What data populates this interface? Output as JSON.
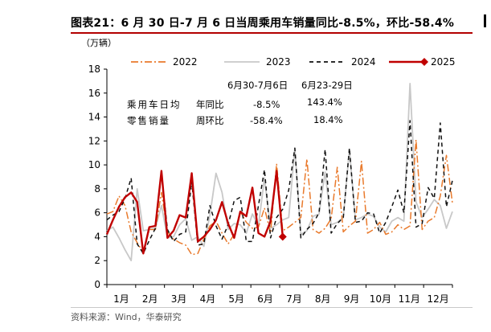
{
  "header": {
    "title": "图表21：6 月 30 日-7 月 6 日当周乘用车销量同比-8.5%，环比-58.4%"
  },
  "footer": {
    "source": "资料来源：Wind，华泰研究"
  },
  "chart_data": {
    "type": "line",
    "unit_label": "（万辆）",
    "ylim": [
      0,
      18
    ],
    "y_ticks": [
      "0",
      "2",
      "4",
      "6",
      "8",
      "10",
      "12",
      "14",
      "16",
      "18"
    ],
    "x_ticks": [
      "1月",
      "2月",
      "3月",
      "4月",
      "5月",
      "6月",
      "7月",
      "8月",
      "9月",
      "10月",
      "11月",
      "12月"
    ],
    "grid": false,
    "legend_position": "top",
    "x_unit": "week of year",
    "series": [
      {
        "name": "2022",
        "color": "#e97a2c",
        "style": "dashdot",
        "values": [
          5.9,
          6.1,
          7.4,
          6.6,
          4.4,
          3.5,
          2.7,
          4.6,
          4.6,
          7.7,
          4.4,
          3.8,
          3.5,
          3.3,
          2.5,
          2.6,
          3.8,
          4.9,
          5.3,
          4.3,
          3.4,
          4.2,
          6.1,
          5.2,
          4.7,
          4.8,
          6.4,
          4.3,
          10.1,
          4.5,
          4.8,
          5.2,
          5.6,
          10.5,
          4.6,
          4.3,
          4.7,
          5.5,
          9.8,
          4.4,
          4.9,
          5.3,
          10.3,
          4.3,
          4.6,
          5.2,
          4.2,
          4.4,
          5.0,
          4.6,
          4.9,
          12.1,
          4.6,
          5.3,
          5.6,
          7.4,
          10.8,
          6.8
        ]
      },
      {
        "name": "2023",
        "color": "#c8c8c8",
        "style": "solid",
        "values": [
          4.5,
          4.8,
          3.9,
          2.9,
          2.0,
          8.0,
          4.5,
          4.6,
          4.7,
          6.6,
          3.9,
          4.0,
          5.0,
          5.5,
          3.7,
          4.0,
          3.2,
          5.8,
          9.3,
          7.7,
          4.6,
          5.1,
          5.0,
          4.3,
          5.9,
          4.9,
          8.9,
          4.7,
          5.0,
          5.4,
          5.6,
          11.4,
          4.2,
          4.5,
          5.7,
          5.9,
          9.4,
          5.0,
          5.2,
          5.6,
          11.3,
          5.4,
          5.6,
          5.9,
          5.7,
          4.8,
          4.4,
          5.3,
          5.6,
          5.3,
          16.8,
          6.9,
          5.6,
          6.3,
          7.1,
          6.6,
          4.7,
          6.1
        ]
      },
      {
        "name": "2024",
        "color": "#111111",
        "style": "dashed",
        "values": [
          5.4,
          5.8,
          6.1,
          7.2,
          8.9,
          3.4,
          2.6,
          3.7,
          4.7,
          9.3,
          4.6,
          3.6,
          4.2,
          4.4,
          8.6,
          3.3,
          3.4,
          6.6,
          4.9,
          3.8,
          5.0,
          7.0,
          7.3,
          3.6,
          3.6,
          6.6,
          9.6,
          3.9,
          5.6,
          6.3,
          7.9,
          11.4,
          3.9,
          4.6,
          5.1,
          6.0,
          11.3,
          4.3,
          5.1,
          5.6,
          11.4,
          5.2,
          5.3,
          6.0,
          5.9,
          4.3,
          5.2,
          6.5,
          7.9,
          6.0,
          13.7,
          4.8,
          5.1,
          8.1,
          7.2,
          13.5,
          6.5,
          8.7
        ]
      },
      {
        "name": "2025",
        "color": "#c00000",
        "style": "solid",
        "values": [
          4.2,
          5.4,
          6.5,
          7.3,
          7.7,
          6.9,
          2.6,
          4.8,
          4.9,
          9.5,
          3.9,
          4.5,
          5.8,
          5.6,
          9.3,
          3.6,
          4.0,
          4.6,
          5.4,
          6.9,
          5.1,
          3.9,
          6.1,
          5.7,
          8.1,
          4.3,
          4.0,
          5.3,
          9.5,
          4.0
        ]
      }
    ],
    "end_marker": {
      "series": "2025",
      "shape": "diamond"
    },
    "table": {
      "col_headers": [
        "6月30-7月6日",
        "6月23-29日"
      ],
      "row_titles": [
        "乘用车日均",
        "零售销量"
      ],
      "rows": [
        {
          "label": "年同比",
          "values": [
            "-8.5%",
            "143.4%"
          ]
        },
        {
          "label": "周环比",
          "values": [
            "-58.4%",
            "18.4%"
          ]
        }
      ]
    }
  }
}
